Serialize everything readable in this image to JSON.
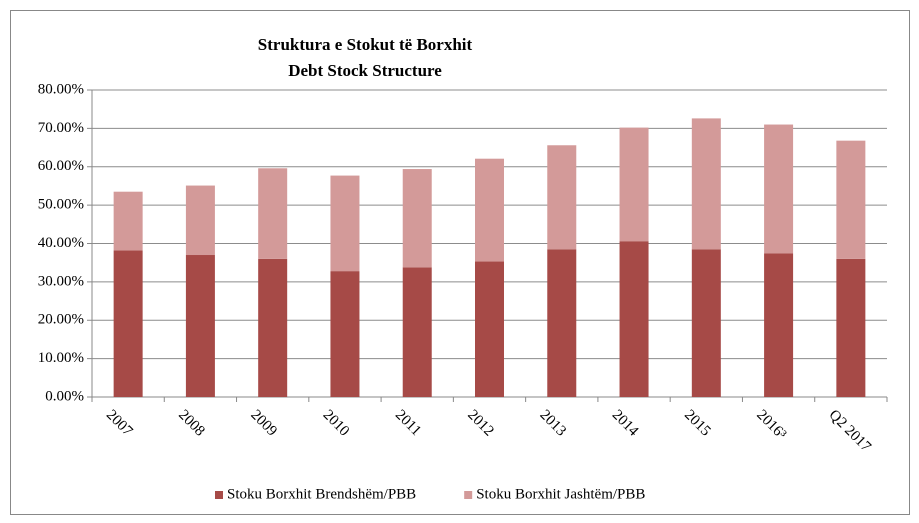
{
  "chart_data": {
    "type": "stacked_bar",
    "title": "Struktura e Stokut të Borxhit",
    "subtitle": "Debt Stock Structure",
    "categories": [
      "2007",
      "2008",
      "2009",
      "2010",
      "2011",
      "2012",
      "2013",
      "2014",
      "2015",
      "2016³",
      "Q2 2017"
    ],
    "series": [
      {
        "name": "Stoku Borxhit Brendshëm/PBB",
        "color": "#a64a47",
        "values": [
          38.2,
          37.0,
          36.0,
          32.8,
          33.8,
          35.3,
          38.5,
          40.6,
          38.5,
          37.4,
          36.0
        ]
      },
      {
        "name": "Stoku Borxhit Jashtëm/PBB",
        "color": "#d39a99",
        "values": [
          15.3,
          18.1,
          23.6,
          24.9,
          25.6,
          26.8,
          27.1,
          29.6,
          34.1,
          33.6,
          30.8
        ]
      }
    ],
    "ylim": [
      0,
      80
    ],
    "yticks": [
      {
        "value": 0,
        "label": "0.00%"
      },
      {
        "value": 10,
        "label": "10.00%"
      },
      {
        "value": 20,
        "label": "20.00%"
      },
      {
        "value": 30,
        "label": "30.00%"
      },
      {
        "value": 40,
        "label": "40.00%"
      },
      {
        "value": 50,
        "label": "50.00%"
      },
      {
        "value": 60,
        "label": "60.00%"
      },
      {
        "value": 70,
        "label": "70.00%"
      },
      {
        "value": 80,
        "label": "80.00%"
      }
    ],
    "grid": true,
    "legend": "bottom"
  }
}
